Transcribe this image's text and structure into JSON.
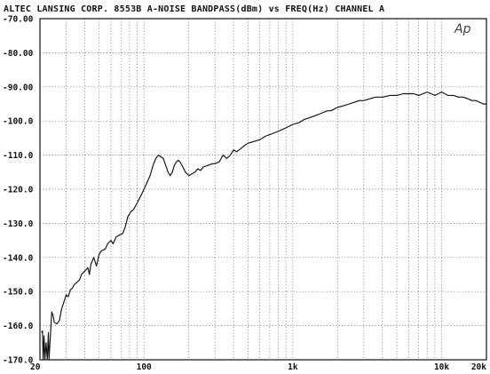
{
  "chart_data": {
    "type": "line",
    "title": "ALTEC LANSING CORP. 8553B A-NOISE BANDPASS(dBm) vs FREQ(Hz) CHANNEL A",
    "logo_text": "Ap",
    "x_scale": "log",
    "xlim": [
      20,
      20000
    ],
    "ylim": [
      -170,
      -70
    ],
    "grid": true,
    "x_tick_labels": [
      {
        "value": 20,
        "label": "20"
      },
      {
        "value": 100,
        "label": "100"
      },
      {
        "value": 1000,
        "label": "1k"
      },
      {
        "value": 10000,
        "label": "10k"
      },
      {
        "value": 20000,
        "label": "20k"
      }
    ],
    "y_tick_labels": [
      {
        "value": -70,
        "label": "-70.00"
      },
      {
        "value": -80,
        "label": "-80.00"
      },
      {
        "value": -90,
        "label": "-90.00"
      },
      {
        "value": -100,
        "label": "-100.0"
      },
      {
        "value": -110,
        "label": "-110.0"
      },
      {
        "value": -120,
        "label": "-120.0"
      },
      {
        "value": -130,
        "label": "-130.0"
      },
      {
        "value": -140,
        "label": "-140.0"
      },
      {
        "value": -150,
        "label": "-150.0"
      },
      {
        "value": -160,
        "label": "-160.0"
      },
      {
        "value": -170,
        "label": "-170.0"
      }
    ],
    "series": [
      {
        "color": "#111111",
        "points": [
          [
            20.5,
            -162
          ],
          [
            20.8,
            -161.5
          ],
          [
            21.0,
            -170
          ],
          [
            21.3,
            -163
          ],
          [
            21.6,
            -170
          ],
          [
            22.0,
            -165
          ],
          [
            22.4,
            -170
          ],
          [
            22.8,
            -162
          ],
          [
            23.0,
            -170
          ],
          [
            24.0,
            -156
          ],
          [
            24.5,
            -157
          ],
          [
            25,
            -159
          ],
          [
            26,
            -159.5
          ],
          [
            27,
            -158.5
          ],
          [
            28,
            -155
          ],
          [
            29,
            -153
          ],
          [
            30,
            -151
          ],
          [
            31,
            -151.5
          ],
          [
            32,
            -149.5
          ],
          [
            33,
            -149
          ],
          [
            34,
            -148
          ],
          [
            36,
            -147
          ],
          [
            37,
            -146.5
          ],
          [
            38,
            -145
          ],
          [
            40,
            -144
          ],
          [
            42,
            -143
          ],
          [
            43,
            -145
          ],
          [
            44,
            -142
          ],
          [
            46,
            -140
          ],
          [
            48,
            -142.5
          ],
          [
            50,
            -139
          ],
          [
            52,
            -138
          ],
          [
            55,
            -137.5
          ],
          [
            57,
            -136
          ],
          [
            60,
            -135
          ],
          [
            62,
            -136
          ],
          [
            65,
            -134
          ],
          [
            68,
            -133.5
          ],
          [
            72,
            -133
          ],
          [
            75,
            -131
          ],
          [
            78,
            -128
          ],
          [
            82,
            -126.5
          ],
          [
            85,
            -126
          ],
          [
            90,
            -124
          ],
          [
            95,
            -122
          ],
          [
            100,
            -120
          ],
          [
            105,
            -118
          ],
          [
            110,
            -116
          ],
          [
            115,
            -113
          ],
          [
            120,
            -111
          ],
          [
            125,
            -110
          ],
          [
            130,
            -110.5
          ],
          [
            135,
            -111
          ],
          [
            140,
            -113
          ],
          [
            145,
            -115
          ],
          [
            150,
            -116
          ],
          [
            155,
            -115
          ],
          [
            160,
            -113
          ],
          [
            165,
            -112
          ],
          [
            170,
            -111.5
          ],
          [
            175,
            -112
          ],
          [
            180,
            -113
          ],
          [
            190,
            -115
          ],
          [
            200,
            -116
          ],
          [
            210,
            -115.5
          ],
          [
            220,
            -115
          ],
          [
            230,
            -114
          ],
          [
            240,
            -114.5
          ],
          [
            250,
            -113.5
          ],
          [
            270,
            -113
          ],
          [
            290,
            -112.5
          ],
          [
            300,
            -112.5
          ],
          [
            320,
            -112
          ],
          [
            340,
            -110
          ],
          [
            360,
            -111
          ],
          [
            380,
            -110
          ],
          [
            400,
            -108.5
          ],
          [
            420,
            -109
          ],
          [
            450,
            -108
          ],
          [
            480,
            -107
          ],
          [
            500,
            -106.5
          ],
          [
            550,
            -106
          ],
          [
            600,
            -105.5
          ],
          [
            650,
            -104.5
          ],
          [
            700,
            -104
          ],
          [
            750,
            -103.5
          ],
          [
            800,
            -103
          ],
          [
            850,
            -102.5
          ],
          [
            900,
            -102
          ],
          [
            1000,
            -101
          ],
          [
            1100,
            -100.5
          ],
          [
            1200,
            -99.5
          ],
          [
            1300,
            -99
          ],
          [
            1400,
            -98.5
          ],
          [
            1500,
            -98
          ],
          [
            1600,
            -97.5
          ],
          [
            1700,
            -97
          ],
          [
            1800,
            -97
          ],
          [
            1900,
            -96.5
          ],
          [
            2000,
            -96
          ],
          [
            2200,
            -95.5
          ],
          [
            2400,
            -95
          ],
          [
            2600,
            -94.5
          ],
          [
            2800,
            -94
          ],
          [
            3000,
            -94
          ],
          [
            3300,
            -93.5
          ],
          [
            3600,
            -93
          ],
          [
            4000,
            -93
          ],
          [
            4500,
            -92.5
          ],
          [
            5000,
            -92.5
          ],
          [
            5500,
            -92
          ],
          [
            6000,
            -92
          ],
          [
            6500,
            -92
          ],
          [
            7000,
            -92.5
          ],
          [
            7500,
            -92
          ],
          [
            8000,
            -91.5
          ],
          [
            8500,
            -92
          ],
          [
            9000,
            -92.5
          ],
          [
            9500,
            -92
          ],
          [
            10000,
            -91.5
          ],
          [
            10500,
            -92
          ],
          [
            11000,
            -92.5
          ],
          [
            12000,
            -92.5
          ],
          [
            13000,
            -93
          ],
          [
            14000,
            -93
          ],
          [
            15000,
            -93.5
          ],
          [
            16000,
            -94
          ],
          [
            17000,
            -94
          ],
          [
            18000,
            -94.5
          ],
          [
            19000,
            -95
          ],
          [
            20000,
            -95
          ]
        ]
      }
    ]
  }
}
